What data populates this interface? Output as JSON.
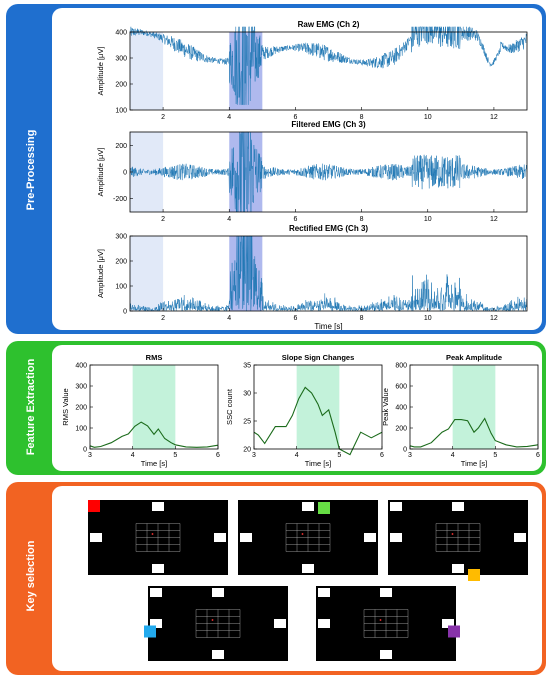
{
  "colors": {
    "preprocessing": "#1f6fcf",
    "feature": "#2ec12e",
    "keysel": "#f26322",
    "signal": "#1f77b4",
    "feature_line": "#1b6b1b",
    "highlight_blue": "#6d7fe0",
    "highlight_light": "#c9d7f2",
    "highlight_green": "#a9eccb"
  },
  "panels": {
    "preprocessing": {
      "label": "Pre-Processing"
    },
    "feature": {
      "label": "Feature Extraction"
    },
    "keysel": {
      "label": "Key selection"
    }
  },
  "chart_data": [
    {
      "type": "line",
      "title": "Raw EMG (Ch 2)",
      "ylabel": "Amplitude [μV]",
      "xlabel": "",
      "xlim": [
        1,
        13
      ],
      "ylim": [
        100,
        400
      ],
      "xticks": [
        "2",
        "4",
        "6",
        "8",
        "10",
        "12"
      ],
      "yticks": [
        "100",
        "200",
        "300",
        "400"
      ],
      "highlights": [
        [
          1,
          2
        ],
        [
          4,
          5
        ]
      ]
    },
    {
      "type": "line",
      "title": "Filtered EMG (Ch 3)",
      "ylabel": "Amplitude [μV]",
      "xlabel": "",
      "xlim": [
        1,
        13
      ],
      "ylim": [
        -300,
        300
      ],
      "xticks": [
        "2",
        "4",
        "6",
        "8",
        "10",
        "12"
      ],
      "yticks": [
        "-200",
        "0",
        "200"
      ],
      "highlights": [
        [
          1,
          2
        ],
        [
          4,
          5
        ]
      ]
    },
    {
      "type": "line",
      "title": "Rectified EMG (Ch 3)",
      "ylabel": "Amplitude [μV]",
      "xlabel": "Time [s]",
      "xlim": [
        1,
        13
      ],
      "ylim": [
        0,
        300
      ],
      "xticks": [
        "2",
        "4",
        "6",
        "8",
        "10",
        "12"
      ],
      "yticks": [
        "0",
        "100",
        "200",
        "300"
      ],
      "highlights": [
        [
          1,
          2
        ],
        [
          4,
          5
        ]
      ]
    },
    {
      "type": "line",
      "title": "RMS",
      "ylabel": "RMS Value",
      "xlabel": "Time [s]",
      "xlim": [
        3,
        6
      ],
      "ylim": [
        0,
        400
      ],
      "xticks": [
        "3",
        "4",
        "5",
        "6"
      ],
      "yticks": [
        "0",
        "100",
        "200",
        "300",
        "400"
      ],
      "highlight": [
        4,
        5
      ],
      "x": [
        3.0,
        3.1,
        3.25,
        3.5,
        3.75,
        3.9,
        4.05,
        4.2,
        4.35,
        4.5,
        4.6,
        4.75,
        4.9,
        5.0,
        5.25,
        5.5,
        5.75,
        6.0
      ],
      "values": [
        15,
        8,
        12,
        30,
        60,
        72,
        108,
        128,
        110,
        70,
        95,
        50,
        30,
        20,
        10,
        8,
        10,
        18
      ]
    },
    {
      "type": "line",
      "title": "Slope Sign Changes",
      "ylabel": "SSC count",
      "xlabel": "Time [s]",
      "xlim": [
        3,
        6
      ],
      "ylim": [
        20,
        35
      ],
      "xticks": [
        "3",
        "4",
        "5",
        "6"
      ],
      "yticks": [
        "20",
        "25",
        "30",
        "35"
      ],
      "highlight": [
        4,
        5
      ],
      "x": [
        3.0,
        3.1,
        3.25,
        3.5,
        3.75,
        3.9,
        4.05,
        4.2,
        4.35,
        4.5,
        4.6,
        4.75,
        4.9,
        5.0,
        5.25,
        5.5,
        5.75,
        6.0
      ],
      "values": [
        23,
        22.5,
        21,
        24,
        24,
        26,
        29,
        31,
        30,
        28,
        26,
        27,
        23,
        20,
        19,
        23,
        22,
        23
      ]
    },
    {
      "type": "line",
      "title": "Peak Amplitude",
      "ylabel": "Peak Value",
      "xlabel": "Time [s]",
      "xlim": [
        3,
        6
      ],
      "ylim": [
        0,
        800
      ],
      "xticks": [
        "3",
        "4",
        "5",
        "6"
      ],
      "yticks": [
        "0",
        "200",
        "400",
        "600",
        "800"
      ],
      "highlight": [
        4,
        5
      ],
      "x": [
        3.0,
        3.1,
        3.25,
        3.5,
        3.75,
        3.9,
        4.05,
        4.2,
        4.35,
        4.5,
        4.6,
        4.75,
        4.9,
        5.0,
        5.25,
        5.5,
        5.75,
        6.0
      ],
      "values": [
        30,
        20,
        20,
        60,
        160,
        190,
        280,
        280,
        270,
        160,
        200,
        290,
        150,
        80,
        40,
        20,
        25,
        40
      ]
    }
  ],
  "screens": [
    {
      "accent": "#ff0000",
      "accent_pos": "top-left"
    },
    {
      "accent": "#66dd44",
      "accent_pos": "top-center"
    },
    {
      "accent": "#ffbb00",
      "accent_pos": "bottom-center"
    },
    {
      "accent": "#22aaee",
      "accent_pos": "left"
    },
    {
      "accent": "#8833aa",
      "accent_pos": "right"
    }
  ]
}
